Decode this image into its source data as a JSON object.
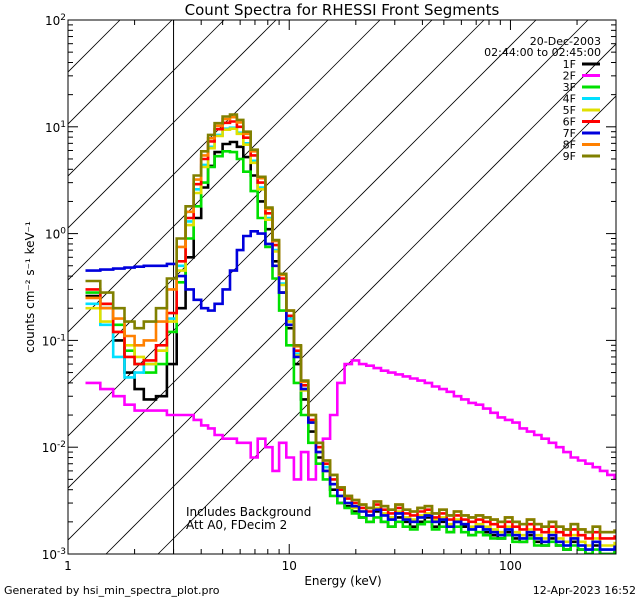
{
  "chart_data": {
    "type": "line",
    "style": "step",
    "title": "Count Spectra for RHESSI Front Segments",
    "xlabel": "Energy (keV)",
    "ylabel": "counts cm⁻² s⁻¹ keV⁻¹",
    "xscale": "log",
    "yscale": "log",
    "xlim": [
      1,
      300
    ],
    "ylim": [
      0.001,
      100
    ],
    "x_ticks": [
      {
        "value": 1,
        "label": "1"
      },
      {
        "value": 10,
        "label": "10"
      },
      {
        "value": 100,
        "label": "100"
      }
    ],
    "y_ticks": [
      {
        "value": 0.001,
        "mantissa": "10",
        "exponent": "-3"
      },
      {
        "value": 0.01,
        "mantissa": "10",
        "exponent": "-2"
      },
      {
        "value": 0.1,
        "mantissa": "10",
        "exponent": "-1"
      },
      {
        "value": 1,
        "mantissa": "10",
        "exponent": "0"
      },
      {
        "value": 10,
        "mantissa": "10",
        "exponent": "1"
      },
      {
        "value": 100,
        "mantissa": "10",
        "exponent": "2"
      }
    ],
    "hatched_region": {
      "x_from": 1,
      "x_to": 3
    },
    "date": "20-Dec-2003",
    "time_range": "02:44:00 to 02:45:00",
    "annotations": [
      "Includes Background",
      "Att A0, FDecim 2"
    ],
    "energy_bins": [
      1.2,
      1.4,
      1.6,
      1.8,
      2.0,
      2.2,
      2.5,
      2.8,
      3.1,
      3.4,
      3.7,
      4.0,
      4.3,
      4.6,
      5.0,
      5.4,
      5.8,
      6.2,
      6.7,
      7.2,
      7.8,
      8.4,
      9.0,
      9.7,
      10.5,
      11.3,
      12.2,
      13.2,
      14.2,
      15.3,
      16.5,
      17.8,
      19.2,
      20.7,
      22.3,
      24.1,
      26.0,
      28.0,
      30.2,
      32.6,
      35.2,
      38.0,
      41.0,
      44.2,
      47.7,
      51.5,
      55.5,
      59.9,
      64.6,
      69.7,
      75.2,
      81.2,
      87.6,
      94.5,
      102.0,
      110.0,
      118.7,
      128.1,
      138.2,
      149.1,
      160.9,
      173.6,
      187.3,
      202.1,
      218.1,
      235.3,
      253.9,
      274.0,
      295.6
    ],
    "series": [
      {
        "name": "1F",
        "color": "#000000",
        "values": [
          0.26,
          0.2,
          0.1,
          0.05,
          0.035,
          0.028,
          0.03,
          0.06,
          0.2,
          0.6,
          1.4,
          2.7,
          4.3,
          5.8,
          6.9,
          7.2,
          6.5,
          5.2,
          3.5,
          2.0,
          1.1,
          0.55,
          0.28,
          0.13,
          0.06,
          0.028,
          0.014,
          0.008,
          0.006,
          0.004,
          0.003,
          0.0028,
          0.0025,
          0.0022,
          0.002,
          0.0025,
          0.002,
          0.0018,
          0.0022,
          0.002,
          0.0018,
          0.002,
          0.0022,
          0.0018,
          0.002,
          0.0016,
          0.002,
          0.0018,
          0.0015,
          0.0018,
          0.0016,
          0.0015,
          0.0014,
          0.0016,
          0.0014,
          0.0013,
          0.0015,
          0.0013,
          0.0012,
          0.0014,
          0.0012,
          0.0011,
          0.0013,
          0.0011,
          0.001,
          0.0012,
          0.001,
          0.001,
          0.0011
        ]
      },
      {
        "name": "2F",
        "color": "#ff00ff",
        "values": [
          0.04,
          0.035,
          0.03,
          0.025,
          0.022,
          0.022,
          0.022,
          0.02,
          0.02,
          0.02,
          0.018,
          0.016,
          0.015,
          0.013,
          0.012,
          0.012,
          0.011,
          0.011,
          0.008,
          0.012,
          0.01,
          0.006,
          0.011,
          0.008,
          0.005,
          0.009,
          0.005,
          0.01,
          0.012,
          0.02,
          0.04,
          0.06,
          0.065,
          0.06,
          0.058,
          0.055,
          0.052,
          0.05,
          0.048,
          0.046,
          0.044,
          0.042,
          0.04,
          0.037,
          0.035,
          0.033,
          0.03,
          0.028,
          0.026,
          0.025,
          0.023,
          0.021,
          0.019,
          0.018,
          0.017,
          0.015,
          0.014,
          0.013,
          0.012,
          0.011,
          0.01,
          0.009,
          0.008,
          0.0075,
          0.007,
          0.0065,
          0.006,
          0.0055,
          0.005
        ]
      },
      {
        "name": "3F",
        "color": "#00e000",
        "values": [
          0.28,
          0.22,
          0.14,
          0.08,
          0.06,
          0.05,
          0.06,
          0.12,
          0.35,
          0.9,
          1.8,
          3.0,
          4.2,
          5.3,
          5.9,
          5.8,
          5.0,
          3.8,
          2.5,
          1.4,
          0.75,
          0.38,
          0.19,
          0.09,
          0.04,
          0.02,
          0.011,
          0.007,
          0.005,
          0.0035,
          0.003,
          0.0027,
          0.0024,
          0.0022,
          0.002,
          0.0022,
          0.002,
          0.0018,
          0.002,
          0.0018,
          0.0017,
          0.0019,
          0.002,
          0.0017,
          0.0018,
          0.0016,
          0.0018,
          0.0016,
          0.0015,
          0.0016,
          0.0015,
          0.0014,
          0.0014,
          0.0015,
          0.0013,
          0.0013,
          0.0014,
          0.0012,
          0.0012,
          0.0013,
          0.0012,
          0.0011,
          0.0012,
          0.0011,
          0.001,
          0.0011,
          0.001,
          0.001,
          0.0011
        ]
      },
      {
        "name": "4F",
        "color": "#00e0ff",
        "values": [
          0.22,
          0.14,
          0.07,
          0.045,
          0.05,
          0.06,
          0.08,
          0.16,
          0.5,
          1.3,
          2.6,
          4.4,
          6.5,
          8.4,
          9.6,
          9.8,
          8.8,
          7.0,
          4.8,
          2.7,
          1.4,
          0.7,
          0.34,
          0.16,
          0.075,
          0.035,
          0.017,
          0.009,
          0.0065,
          0.0045,
          0.0035,
          0.003,
          0.0028,
          0.0025,
          0.0023,
          0.0026,
          0.0023,
          0.0021,
          0.0024,
          0.0021,
          0.002,
          0.0022,
          0.0023,
          0.002,
          0.0021,
          0.0018,
          0.002,
          0.0019,
          0.0017,
          0.0018,
          0.0017,
          0.0016,
          0.0015,
          0.0017,
          0.0015,
          0.0014,
          0.0016,
          0.0014,
          0.0013,
          0.0015,
          0.0013,
          0.0012,
          0.0014,
          0.0012,
          0.0011,
          0.0013,
          0.0011,
          0.0011,
          0.0012
        ]
      },
      {
        "name": "5F",
        "color": "#e0e000",
        "values": [
          0.2,
          0.15,
          0.12,
          0.09,
          0.07,
          0.06,
          0.08,
          0.15,
          0.45,
          1.2,
          2.4,
          4.2,
          6.3,
          8.2,
          9.4,
          9.6,
          8.6,
          6.8,
          4.6,
          2.6,
          1.35,
          0.68,
          0.33,
          0.15,
          0.072,
          0.034,
          0.017,
          0.009,
          0.006,
          0.0045,
          0.0035,
          0.003,
          0.0027,
          0.0025,
          0.0023,
          0.0027,
          0.0024,
          0.0022,
          0.0025,
          0.0022,
          0.0021,
          0.0023,
          0.0024,
          0.0021,
          0.0022,
          0.0019,
          0.0021,
          0.0019,
          0.0018,
          0.0019,
          0.0018,
          0.0017,
          0.0016,
          0.0018,
          0.0016,
          0.0015,
          0.0017,
          0.0015,
          0.0014,
          0.0016,
          0.0014,
          0.0013,
          0.0015,
          0.0013,
          0.0012,
          0.0014,
          0.0012,
          0.0012,
          0.0013
        ]
      },
      {
        "name": "6F",
        "color": "#ff0000",
        "values": [
          0.3,
          0.22,
          0.12,
          0.07,
          0.06,
          0.065,
          0.09,
          0.18,
          0.55,
          1.4,
          2.9,
          5.0,
          7.3,
          9.5,
          10.9,
          11.2,
          10.0,
          7.9,
          5.4,
          3.0,
          1.55,
          0.78,
          0.38,
          0.17,
          0.08,
          0.038,
          0.018,
          0.01,
          0.007,
          0.005,
          0.004,
          0.0033,
          0.003,
          0.0027,
          0.0025,
          0.0029,
          0.0026,
          0.0024,
          0.0027,
          0.0024,
          0.0023,
          0.0025,
          0.0026,
          0.0022,
          0.0024,
          0.0021,
          0.0023,
          0.0021,
          0.002,
          0.0021,
          0.002,
          0.0019,
          0.0018,
          0.002,
          0.0018,
          0.0017,
          0.0019,
          0.0017,
          0.0016,
          0.0018,
          0.0016,
          0.0015,
          0.0017,
          0.0015,
          0.0014,
          0.0016,
          0.0014,
          0.0014,
          0.0015
        ]
      },
      {
        "name": "7F",
        "color": "#0000dd",
        "values": [
          0.45,
          0.46,
          0.47,
          0.48,
          0.49,
          0.5,
          0.5,
          0.52,
          0.4,
          0.3,
          0.24,
          0.2,
          0.19,
          0.22,
          0.3,
          0.45,
          0.7,
          0.95,
          1.05,
          1.0,
          0.8,
          0.5,
          0.28,
          0.14,
          0.07,
          0.035,
          0.017,
          0.009,
          0.006,
          0.0045,
          0.0035,
          0.003,
          0.0028,
          0.0025,
          0.0023,
          0.0026,
          0.0023,
          0.0021,
          0.0024,
          0.0021,
          0.002,
          0.0022,
          0.0023,
          0.002,
          0.0021,
          0.0018,
          0.002,
          0.0019,
          0.0017,
          0.0018,
          0.0017,
          0.0016,
          0.0015,
          0.0017,
          0.0015,
          0.0014,
          0.0016,
          0.0014,
          0.0013,
          0.0015,
          0.0013,
          0.0012,
          0.0014,
          0.0012,
          0.0011,
          0.0013,
          0.0011,
          0.0011,
          0.0012
        ]
      },
      {
        "name": "8F",
        "color": "#ff8000",
        "values": [
          0.25,
          0.2,
          0.16,
          0.11,
          0.09,
          0.1,
          0.15,
          0.3,
          0.75,
          1.6,
          3.2,
          5.4,
          7.8,
          10.2,
          11.8,
          12.3,
          11.0,
          8.6,
          5.9,
          3.3,
          1.7,
          0.85,
          0.41,
          0.19,
          0.088,
          0.041,
          0.02,
          0.011,
          0.0075,
          0.0055,
          0.0042,
          0.0035,
          0.0032,
          0.0029,
          0.0027,
          0.0031,
          0.0028,
          0.0026,
          0.0029,
          0.0026,
          0.0025,
          0.0027,
          0.0028,
          0.0024,
          0.0026,
          0.0023,
          0.0025,
          0.0023,
          0.0022,
          0.0023,
          0.0022,
          0.0021,
          0.002,
          0.0022,
          0.002,
          0.0019,
          0.0021,
          0.0019,
          0.0018,
          0.002,
          0.0018,
          0.0017,
          0.0019,
          0.0017,
          0.0016,
          0.0018,
          0.0016,
          0.0016,
          0.0017
        ]
      },
      {
        "name": "9F",
        "color": "#808000",
        "values": [
          0.36,
          0.28,
          0.2,
          0.15,
          0.13,
          0.15,
          0.2,
          0.38,
          0.9,
          1.8,
          3.5,
          5.9,
          8.4,
          10.8,
          12.5,
          13.0,
          11.6,
          9.0,
          6.1,
          3.4,
          1.75,
          0.87,
          0.42,
          0.19,
          0.09,
          0.042,
          0.02,
          0.011,
          0.0075,
          0.0055,
          0.0042,
          0.0035,
          0.0032,
          0.0029,
          0.0027,
          0.0031,
          0.0028,
          0.0026,
          0.0029,
          0.0026,
          0.0025,
          0.0027,
          0.0028,
          0.0024,
          0.0026,
          0.0023,
          0.0025,
          0.0023,
          0.0022,
          0.0023,
          0.0022,
          0.0021,
          0.002,
          0.0022,
          0.002,
          0.0019,
          0.0021,
          0.0019,
          0.0018,
          0.002,
          0.0018,
          0.0017,
          0.0019,
          0.0017,
          0.0016,
          0.0018,
          0.0016,
          0.0016,
          0.0017
        ]
      }
    ]
  },
  "footer": {
    "generated_by": "Generated by hsi_min_spectra_plot.pro",
    "timestamp": "12-Apr-2023 16:52"
  }
}
